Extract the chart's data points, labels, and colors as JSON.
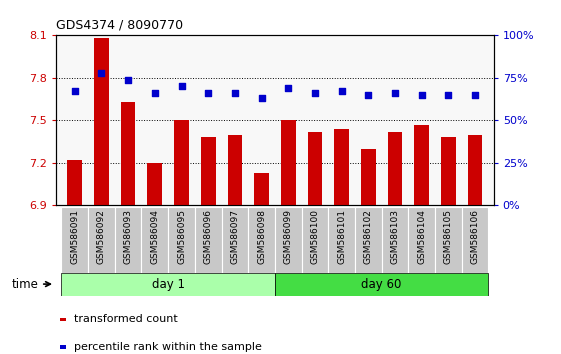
{
  "title": "GDS4374 / 8090770",
  "samples": [
    "GSM586091",
    "GSM586092",
    "GSM586093",
    "GSM586094",
    "GSM586095",
    "GSM586096",
    "GSM586097",
    "GSM586098",
    "GSM586099",
    "GSM586100",
    "GSM586101",
    "GSM586102",
    "GSM586103",
    "GSM586104",
    "GSM586105",
    "GSM586106"
  ],
  "red_values": [
    7.22,
    8.08,
    7.63,
    7.2,
    7.5,
    7.38,
    7.4,
    7.13,
    7.5,
    7.42,
    7.44,
    7.3,
    7.42,
    7.47,
    7.38,
    7.4
  ],
  "blue_values_pct": [
    67,
    78,
    74,
    66,
    70,
    66,
    66,
    63,
    69,
    66,
    67,
    65,
    66,
    65,
    65,
    65
  ],
  "ylim_left": [
    6.9,
    8.1
  ],
  "ylim_right": [
    0,
    100
  ],
  "yticks_left": [
    6.9,
    7.2,
    7.5,
    7.8,
    8.1
  ],
  "yticks_right": [
    0,
    25,
    50,
    75,
    100
  ],
  "day1_count": 8,
  "day60_count": 8,
  "day1_label": "day 1",
  "day60_label": "day 60",
  "time_label": "time",
  "legend_red": "transformed count",
  "legend_blue": "percentile rank within the sample",
  "red_color": "#cc0000",
  "blue_color": "#0000cc",
  "bar_width": 0.55,
  "bg_plot": "#f8f8f8",
  "xtick_bg": "#c8c8c8",
  "day1_color": "#aaffaa",
  "day60_color": "#44dd44",
  "grid_color": "#000000"
}
